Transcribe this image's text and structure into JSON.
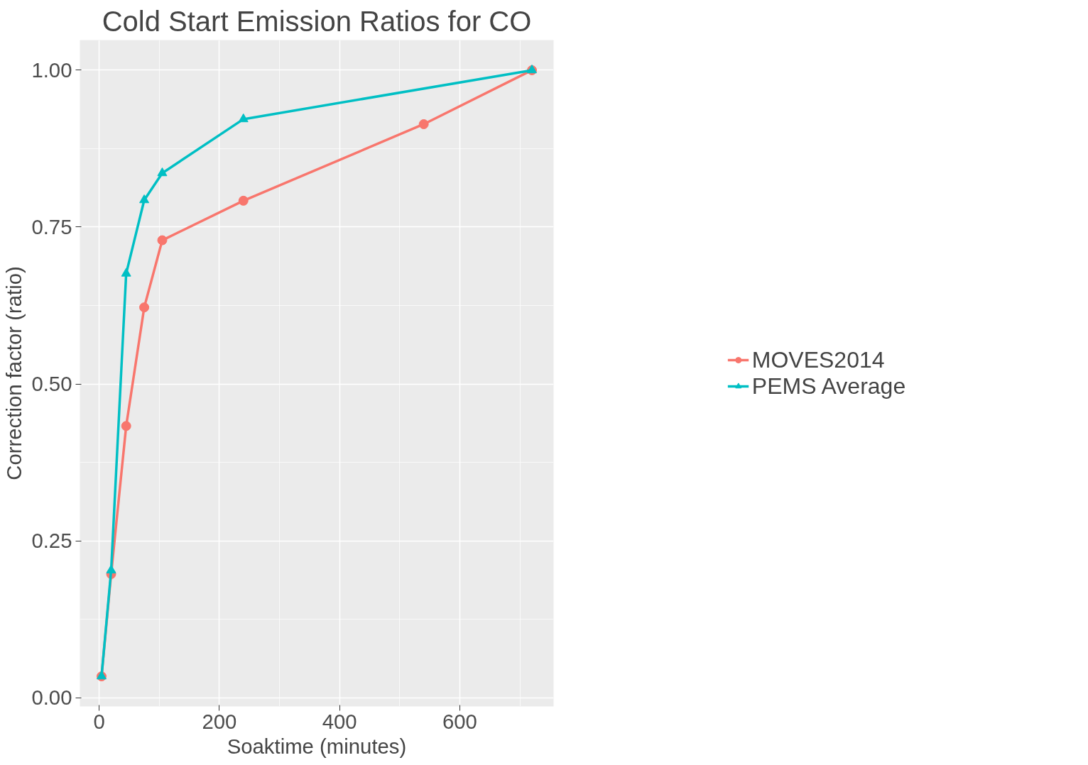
{
  "chart_data": {
    "type": "line",
    "title": "Cold Start Emission Ratios for CO",
    "xlabel": "Soaktime (minutes)",
    "ylabel": "Correction factor (ratio)",
    "series": [
      {
        "name": "MOVES2014",
        "color": "#f8766d",
        "marker": "circle",
        "x": [
          4,
          20,
          45,
          75,
          105,
          240,
          540,
          720
        ],
        "values": [
          0.034,
          0.197,
          0.433,
          0.622,
          0.729,
          0.792,
          0.914,
          1.0
        ]
      },
      {
        "name": "PEMS Average",
        "color": "#00bfc4",
        "marker": "triangle",
        "x": [
          4,
          20,
          45,
          75,
          105,
          240,
          720
        ],
        "values": [
          0.034,
          0.203,
          0.676,
          0.793,
          0.836,
          0.922,
          1.0
        ]
      }
    ],
    "xlim": [
      -32,
      756
    ],
    "ylim": [
      -0.014,
      1.048
    ],
    "xticks": [
      0,
      200,
      400,
      600
    ],
    "yticks": [
      {
        "value": 0,
        "label": "0.00"
      },
      {
        "value": 0.25,
        "label": "0.25"
      },
      {
        "value": 0.5,
        "label": "0.50"
      },
      {
        "value": 0.75,
        "label": "0.75"
      },
      {
        "value": 1,
        "label": "1.00"
      }
    ],
    "grid": true,
    "legend": "right",
    "line_style": "solid"
  }
}
